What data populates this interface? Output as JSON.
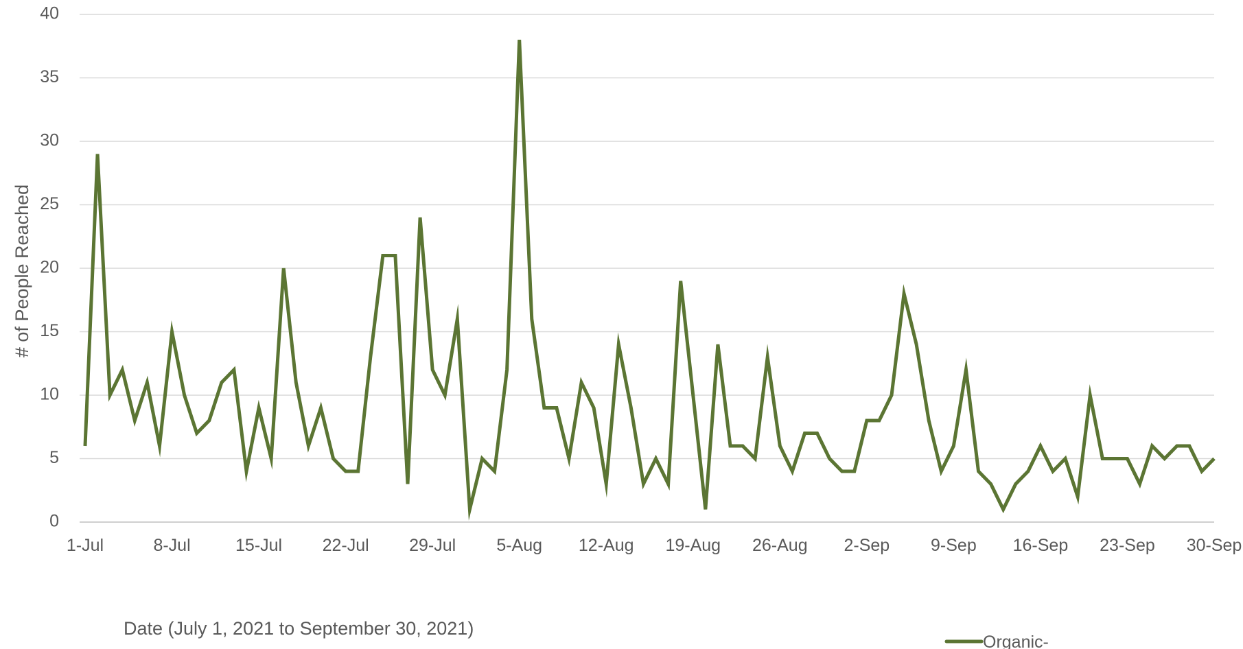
{
  "chart_data": {
    "type": "line",
    "xlabel": "Date (July 1, 2021 to September 30, 2021)",
    "ylabel": "# of People Reached",
    "ylim": [
      0,
      40
    ],
    "yticks": [
      0,
      5,
      10,
      15,
      20,
      25,
      30,
      35,
      40
    ],
    "xlim": [
      "2021-07-01",
      "2021-09-30"
    ],
    "xticks": [
      {
        "date": "2021-07-01",
        "label": "1-Jul"
      },
      {
        "date": "2021-07-08",
        "label": "8-Jul"
      },
      {
        "date": "2021-07-15",
        "label": "15-Jul"
      },
      {
        "date": "2021-07-22",
        "label": "22-Jul"
      },
      {
        "date": "2021-07-29",
        "label": "29-Jul"
      },
      {
        "date": "2021-08-05",
        "label": "5-Aug"
      },
      {
        "date": "2021-08-12",
        "label": "12-Aug"
      },
      {
        "date": "2021-08-19",
        "label": "19-Aug"
      },
      {
        "date": "2021-08-26",
        "label": "26-Aug"
      },
      {
        "date": "2021-09-02",
        "label": "2-Sep"
      },
      {
        "date": "2021-09-09",
        "label": "9-Sep"
      },
      {
        "date": "2021-09-16",
        "label": "16-Sep"
      },
      {
        "date": "2021-09-23",
        "label": "23-Sep"
      },
      {
        "date": "2021-09-30",
        "label": "30-Sep"
      }
    ],
    "grid": "horizontal",
    "legend_position": "bottom-right",
    "x": [
      "2021-07-01",
      "2021-07-02",
      "2021-07-03",
      "2021-07-04",
      "2021-07-05",
      "2021-07-06",
      "2021-07-07",
      "2021-07-08",
      "2021-07-09",
      "2021-07-10",
      "2021-07-11",
      "2021-07-12",
      "2021-07-13",
      "2021-07-14",
      "2021-07-15",
      "2021-07-16",
      "2021-07-17",
      "2021-07-18",
      "2021-07-19",
      "2021-07-20",
      "2021-07-21",
      "2021-07-22",
      "2021-07-23",
      "2021-07-24",
      "2021-07-25",
      "2021-07-26",
      "2021-07-27",
      "2021-07-28",
      "2021-07-29",
      "2021-07-30",
      "2021-07-31",
      "2021-08-01",
      "2021-08-02",
      "2021-08-03",
      "2021-08-04",
      "2021-08-05",
      "2021-08-06",
      "2021-08-07",
      "2021-08-08",
      "2021-08-09",
      "2021-08-10",
      "2021-08-11",
      "2021-08-12",
      "2021-08-13",
      "2021-08-14",
      "2021-08-15",
      "2021-08-16",
      "2021-08-17",
      "2021-08-18",
      "2021-08-19",
      "2021-08-20",
      "2021-08-21",
      "2021-08-22",
      "2021-08-23",
      "2021-08-24",
      "2021-08-25",
      "2021-08-26",
      "2021-08-27",
      "2021-08-28",
      "2021-08-29",
      "2021-08-30",
      "2021-08-31",
      "2021-09-01",
      "2021-09-02",
      "2021-09-03",
      "2021-09-04",
      "2021-09-05",
      "2021-09-06",
      "2021-09-07",
      "2021-09-08",
      "2021-09-09",
      "2021-09-10",
      "2021-09-11",
      "2021-09-12",
      "2021-09-13",
      "2021-09-14",
      "2021-09-15",
      "2021-09-16",
      "2021-09-17",
      "2021-09-18",
      "2021-09-19",
      "2021-09-20",
      "2021-09-21",
      "2021-09-22",
      "2021-09-23",
      "2021-09-24",
      "2021-09-25",
      "2021-09-26",
      "2021-09-27",
      "2021-09-28",
      "2021-09-29",
      "2021-09-30"
    ],
    "series": [
      {
        "name": "Organic-",
        "color": "#5b7533",
        "values": [
          6,
          29,
          10,
          12,
          8,
          11,
          6,
          15,
          10,
          7,
          8,
          11,
          12,
          4,
          9,
          5,
          20,
          11,
          6,
          9,
          5,
          4,
          4,
          13,
          21,
          21,
          3,
          24,
          12,
          10,
          16,
          1,
          5,
          4,
          12,
          38,
          16,
          9,
          9,
          5,
          11,
          9,
          3,
          14,
          9,
          3,
          5,
          3,
          19,
          10,
          1,
          14,
          6,
          6,
          5,
          13,
          6,
          4,
          7,
          7,
          5,
          4,
          4,
          8,
          8,
          10,
          18,
          14,
          8,
          4,
          6,
          12,
          4,
          3,
          1,
          3,
          4,
          6,
          4,
          5,
          2,
          10,
          5,
          5,
          5,
          3,
          6,
          5,
          6,
          6,
          4,
          5
        ]
      }
    ]
  }
}
